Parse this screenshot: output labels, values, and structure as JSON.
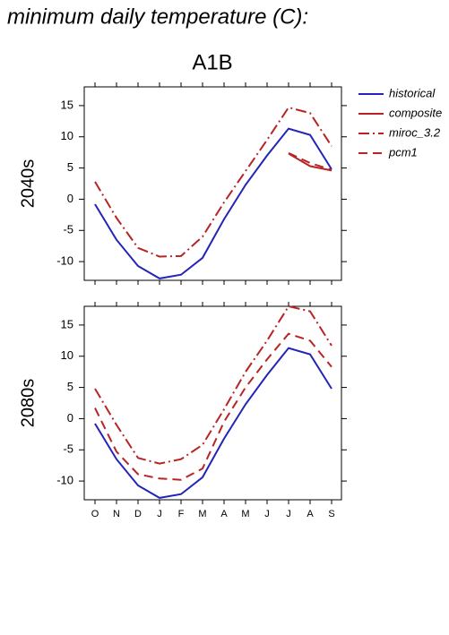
{
  "title": "minimum daily temperature (C):",
  "chart_data": [
    {
      "type": "line",
      "title": "A1B",
      "ylabel": "2040s",
      "ylim": [
        -13,
        18
      ],
      "yticks": [
        -10,
        -5,
        0,
        5,
        10,
        15
      ],
      "legend": "outside-right",
      "series": [
        {
          "name": "historical",
          "color": "#2424b8",
          "linestyle": "solid",
          "values": [
            -0.8,
            -6.5,
            -10.7,
            -12.7,
            -12.1,
            -9.4,
            -3.2,
            2.3,
            7,
            11.3,
            10.3,
            4.8
          ]
        },
        {
          "name": "composite",
          "color": "#b82424",
          "linestyle": "solid",
          "values": [
            null,
            null,
            null,
            null,
            null,
            null,
            null,
            null,
            null,
            7.3,
            5.3,
            4.6
          ]
        },
        {
          "name": "miroc_3.2",
          "color": "#b82424",
          "linestyle": "dashdot",
          "values": [
            2.8,
            -3,
            -7.8,
            -9.2,
            -9.1,
            -6,
            -0.5,
            4.5,
            9.5,
            14.7,
            13.8,
            8.5
          ]
        },
        {
          "name": "pcm1",
          "color": "#b82424",
          "linestyle": "dashed",
          "values": [
            null,
            null,
            null,
            null,
            null,
            null,
            null,
            null,
            null,
            7.4,
            5.8,
            4.7
          ]
        }
      ]
    },
    {
      "type": "line",
      "ylabel": "2080s",
      "ylim": [
        -13,
        18
      ],
      "yticks": [
        -10,
        -5,
        0,
        5,
        10,
        15
      ],
      "categories": [
        "O",
        "N",
        "D",
        "J",
        "F",
        "M",
        "A",
        "M",
        "J",
        "J",
        "A",
        "S"
      ],
      "series": [
        {
          "color": "#2424b8",
          "linestyle": "solid",
          "values": [
            -0.8,
            -6.5,
            -10.7,
            -12.7,
            -12.1,
            -9.4,
            -3.2,
            2.3,
            7,
            11.3,
            10.3,
            4.8
          ]
        },
        {
          "color": "#b82424",
          "linestyle": "dashdot",
          "values": [
            4.8,
            -1,
            -6.3,
            -7.2,
            -6.5,
            -4.2,
            1.5,
            7.5,
            12.5,
            18,
            17.2,
            11.7
          ]
        },
        {
          "color": "#b82424",
          "linestyle": "dashed",
          "values": [
            1.7,
            -5.3,
            -8.9,
            -9.6,
            -9.8,
            -8,
            -0.5,
            5,
            9.5,
            13.6,
            12.5,
            8.3
          ]
        }
      ]
    }
  ]
}
